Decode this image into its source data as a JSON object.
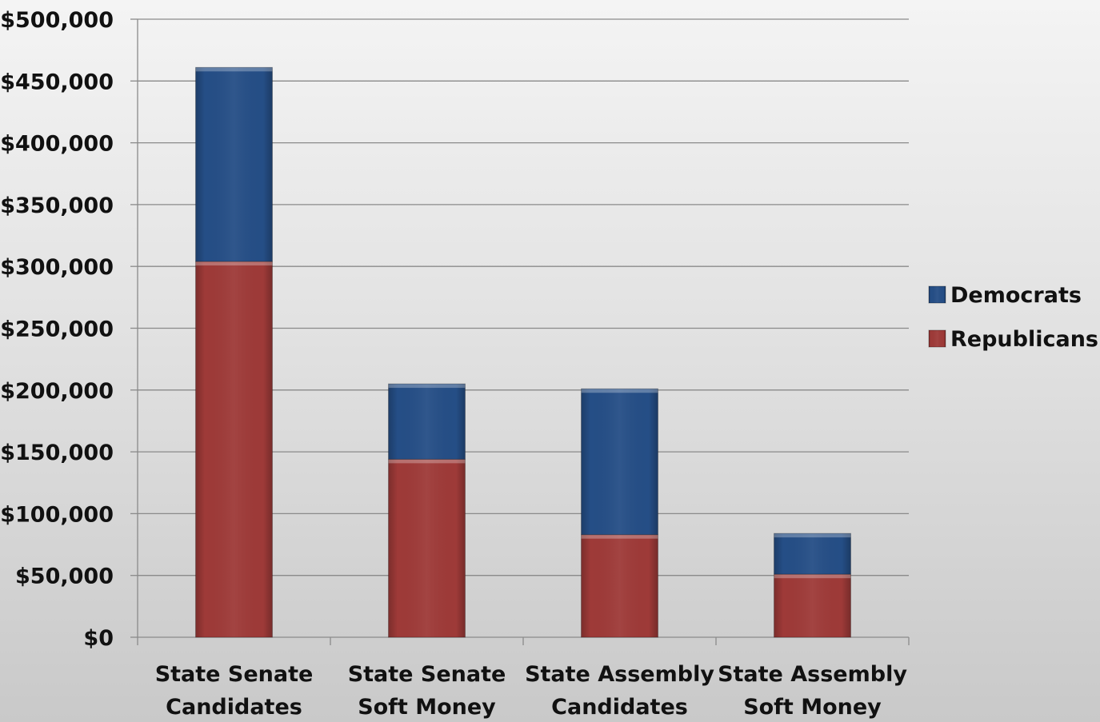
{
  "chart_data": {
    "type": "bar",
    "stacked": true,
    "categories": [
      [
        "State Senate",
        "Candidates"
      ],
      [
        "State Senate",
        "Soft Money"
      ],
      [
        "State Assembly",
        "Candidates"
      ],
      [
        "State Assembly",
        "Soft Money"
      ]
    ],
    "series": [
      {
        "name": "Republicans",
        "color": "#9e3a38",
        "values": [
          304000,
          144000,
          83000,
          51000
        ]
      },
      {
        "name": "Democrats",
        "color": "#254e86",
        "values": [
          157000,
          61000,
          118000,
          33000
        ]
      }
    ],
    "title": "",
    "xlabel": "",
    "ylabel": "",
    "ylim": [
      0,
      500000
    ],
    "y_ticks": [
      "$0",
      "$50,000",
      "$100,000",
      "$150,000",
      "$200,000",
      "$250,000",
      "$300,000",
      "$350,000",
      "$400,000",
      "$450,000",
      "$500,000"
    ],
    "grid": true,
    "legend": {
      "position": "right",
      "entries": [
        {
          "name": "Democrats",
          "color": "#254e86"
        },
        {
          "name": "Republicans",
          "color": "#9e3a38"
        }
      ]
    }
  }
}
